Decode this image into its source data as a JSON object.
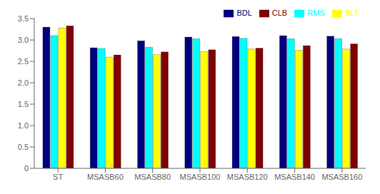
{
  "chart_data": {
    "type": "bar",
    "categories": [
      "ST",
      "MSASB60",
      "MSASB80",
      "MSASB100",
      "MSASB120",
      "MSASB140",
      "MSASB160"
    ],
    "series": [
      {
        "name": "BDL",
        "color": "#00007F",
        "values": [
          3.3,
          2.82,
          2.98,
          3.07,
          3.08,
          3.1,
          3.09
        ]
      },
      {
        "name": "RMS",
        "color": "#00FFFF",
        "values": [
          3.1,
          2.8,
          2.83,
          3.03,
          3.04,
          3.03,
          3.03
        ]
      },
      {
        "name": "SLT",
        "color": "#FFFF00",
        "values": [
          3.28,
          2.6,
          2.66,
          2.73,
          2.79,
          2.76,
          2.79
        ]
      },
      {
        "name": "CLB",
        "color": "#7F0000",
        "values": [
          3.33,
          2.65,
          2.72,
          2.77,
          2.81,
          2.87,
          2.91
        ]
      }
    ],
    "ylim": [
      0,
      3.5
    ],
    "yticks": [
      0,
      0.5,
      {
        "value": 1,
        "label": "1.0"
      },
      1.5,
      {
        "value": 2,
        "label": "2.0"
      },
      2.5,
      {
        "value": 3,
        "label": "3.0"
      },
      3.5
    ],
    "grid": false,
    "legend": "upper right"
  }
}
